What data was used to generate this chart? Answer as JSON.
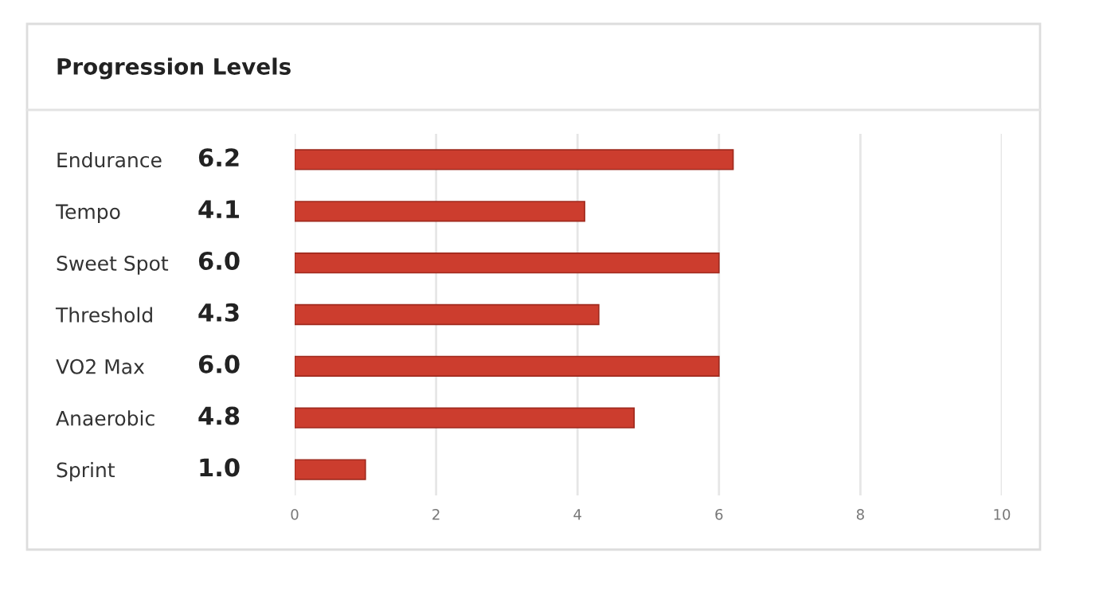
{
  "chart_data": {
    "type": "bar",
    "orientation": "horizontal",
    "title": "Progression Levels",
    "categories": [
      "Endurance",
      "Tempo",
      "Sweet Spot",
      "Threshold",
      "VO2 Max",
      "Anaerobic",
      "Sprint"
    ],
    "values": [
      6.2,
      4.1,
      6.0,
      4.3,
      6.0,
      4.8,
      1.0
    ],
    "value_labels": [
      "6.2",
      "4.1",
      "6.0",
      "4.3",
      "6.0",
      "4.8",
      "1.0"
    ],
    "color": "#cc3d2e",
    "xlim": [
      0,
      10
    ],
    "xticks": [
      0,
      2,
      4,
      6,
      8,
      10
    ],
    "grid": "x"
  }
}
